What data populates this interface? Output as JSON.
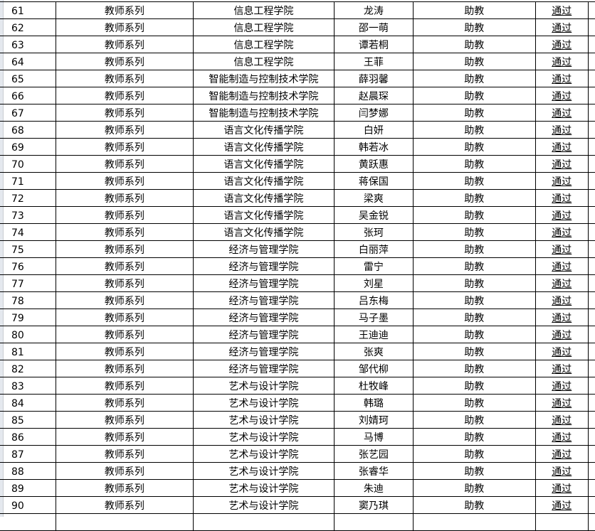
{
  "rows": [
    {
      "no": "61",
      "series": "教师系列",
      "college": "信息工程学院",
      "name": "龙涛",
      "title": "助教",
      "result": "通过"
    },
    {
      "no": "62",
      "series": "教师系列",
      "college": "信息工程学院",
      "name": "邵一萌",
      "title": "助教",
      "result": "通过"
    },
    {
      "no": "63",
      "series": "教师系列",
      "college": "信息工程学院",
      "name": "谭若桐",
      "title": "助教",
      "result": "通过"
    },
    {
      "no": "64",
      "series": "教师系列",
      "college": "信息工程学院",
      "name": "王菲",
      "title": "助教",
      "result": "通过"
    },
    {
      "no": "65",
      "series": "教师系列",
      "college": "智能制造与控制技术学院",
      "name": "薛羽馨",
      "title": "助教",
      "result": "通过"
    },
    {
      "no": "66",
      "series": "教师系列",
      "college": "智能制造与控制技术学院",
      "name": "赵晨琛",
      "title": "助教",
      "result": "通过"
    },
    {
      "no": "67",
      "series": "教师系列",
      "college": "智能制造与控制技术学院",
      "name": "闫梦娜",
      "title": "助教",
      "result": "通过"
    },
    {
      "no": "68",
      "series": "教师系列",
      "college": "语言文化传播学院",
      "name": "白妍",
      "title": "助教",
      "result": "通过"
    },
    {
      "no": "69",
      "series": "教师系列",
      "college": "语言文化传播学院",
      "name": "韩若冰",
      "title": "助教",
      "result": "通过"
    },
    {
      "no": "70",
      "series": "教师系列",
      "college": "语言文化传播学院",
      "name": "黄跃惠",
      "title": "助教",
      "result": "通过"
    },
    {
      "no": "71",
      "series": "教师系列",
      "college": "语言文化传播学院",
      "name": "蒋保国",
      "title": "助教",
      "result": "通过"
    },
    {
      "no": "72",
      "series": "教师系列",
      "college": "语言文化传播学院",
      "name": "梁爽",
      "title": "助教",
      "result": "通过"
    },
    {
      "no": "73",
      "series": "教师系列",
      "college": "语言文化传播学院",
      "name": "吴金锐",
      "title": "助教",
      "result": "通过"
    },
    {
      "no": "74",
      "series": "教师系列",
      "college": "语言文化传播学院",
      "name": "张珂",
      "title": "助教",
      "result": "通过"
    },
    {
      "no": "75",
      "series": "教师系列",
      "college": "经济与管理学院",
      "name": "白丽萍",
      "title": "助教",
      "result": "通过"
    },
    {
      "no": "76",
      "series": "教师系列",
      "college": "经济与管理学院",
      "name": "雷宁",
      "title": "助教",
      "result": "通过"
    },
    {
      "no": "77",
      "series": "教师系列",
      "college": "经济与管理学院",
      "name": "刘星",
      "title": "助教",
      "result": "通过"
    },
    {
      "no": "78",
      "series": "教师系列",
      "college": "经济与管理学院",
      "name": "吕东梅",
      "title": "助教",
      "result": "通过"
    },
    {
      "no": "79",
      "series": "教师系列",
      "college": "经济与管理学院",
      "name": "马子墨",
      "title": "助教",
      "result": "通过"
    },
    {
      "no": "80",
      "series": "教师系列",
      "college": "经济与管理学院",
      "name": "王迪迪",
      "title": "助教",
      "result": "通过"
    },
    {
      "no": "81",
      "series": "教师系列",
      "college": "经济与管理学院",
      "name": "张爽",
      "title": "助教",
      "result": "通过"
    },
    {
      "no": "82",
      "series": "教师系列",
      "college": "经济与管理学院",
      "name": "邹代柳",
      "title": "助教",
      "result": "通过"
    },
    {
      "no": "83",
      "series": "教师系列",
      "college": "艺术与设计学院",
      "name": "杜牧峰",
      "title": "助教",
      "result": "通过"
    },
    {
      "no": "84",
      "series": "教师系列",
      "college": "艺术与设计学院",
      "name": "韩璐",
      "title": "助教",
      "result": "通过"
    },
    {
      "no": "85",
      "series": "教师系列",
      "college": "艺术与设计学院",
      "name": "刘婧珂",
      "title": "助教",
      "result": "通过"
    },
    {
      "no": "86",
      "series": "教师系列",
      "college": "艺术与设计学院",
      "name": "马博",
      "title": "助教",
      "result": "通过"
    },
    {
      "no": "87",
      "series": "教师系列",
      "college": "艺术与设计学院",
      "name": "张艺园",
      "title": "助教",
      "result": "通过"
    },
    {
      "no": "88",
      "series": "教师系列",
      "college": "艺术与设计学院",
      "name": "张睿华",
      "title": "助教",
      "result": "通过"
    },
    {
      "no": "89",
      "series": "教师系列",
      "college": "艺术与设计学院",
      "name": "朱迪",
      "title": "助教",
      "result": "通过"
    },
    {
      "no": "90",
      "series": "教师系列",
      "college": "艺术与设计学院",
      "name": "窦乃琪",
      "title": "助教",
      "result": "通过"
    }
  ]
}
